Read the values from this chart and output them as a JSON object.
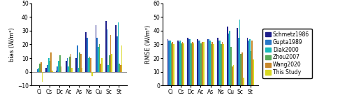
{
  "categories": [
    "Ci",
    "Cs",
    "Dc",
    "Ac",
    "As",
    "Ns",
    "Cu",
    "Sc",
    "St"
  ],
  "bias": {
    "Schmetz1986": [
      0,
      3,
      1,
      8,
      10,
      29,
      34,
      37,
      34
    ],
    "Gupta1989": [
      2,
      5,
      4,
      10,
      19,
      25,
      25,
      31,
      26
    ],
    "Diak2000": [
      3,
      10,
      8,
      4,
      3,
      10,
      18,
      5,
      36
    ],
    "Zhou2007": [
      6,
      8,
      12,
      11,
      14,
      11,
      20,
      12,
      6
    ],
    "Wang2020": [
      7,
      14,
      4,
      13,
      13,
      10,
      6,
      27,
      5
    ],
    "ThisStudy": [
      -7,
      1,
      0,
      3,
      3,
      -3,
      10,
      13,
      19
    ]
  },
  "rmse": {
    "Schmetz1986": [
      34,
      33,
      35,
      34,
      34,
      35,
      43,
      42,
      35
    ],
    "Gupta1989": [
      33,
      32,
      34,
      33,
      34,
      33,
      38,
      35,
      33
    ],
    "Diak2000": [
      33,
      33,
      34,
      33,
      33,
      33,
      40,
      48,
      34
    ],
    "Zhou2007": [
      31,
      31,
      31,
      31,
      30,
      30,
      28,
      23,
      25
    ],
    "Wang2020": [
      32,
      32,
      32,
      32,
      32,
      32,
      14,
      24,
      33
    ],
    "ThisStudy": [
      30,
      31,
      31,
      32,
      30,
      30,
      15,
      6,
      19
    ]
  },
  "colors": {
    "Schmetz1986": "#1F1F8B",
    "Gupta1989": "#2878C8",
    "Diak2000": "#1ABABA",
    "Zhou2007": "#5AAA5A",
    "Wang2020": "#C8882A",
    "ThisStudy": "#D8D820"
  },
  "legend_labels": [
    "Schmetz1986",
    "Gupta1989",
    "Diak2000",
    "Zhou2007",
    "Wang2020",
    "This Study"
  ],
  "bias_ylabel": "bias (W/m²)",
  "rmse_ylabel": "RMSE (W/m²)",
  "bias_ylim": [
    -10,
    50
  ],
  "rmse_ylim": [
    0,
    60
  ],
  "bias_yticks": [
    -10,
    0,
    10,
    20,
    30,
    40,
    50
  ],
  "rmse_yticks": [
    0,
    10,
    20,
    30,
    40,
    50,
    60
  ]
}
